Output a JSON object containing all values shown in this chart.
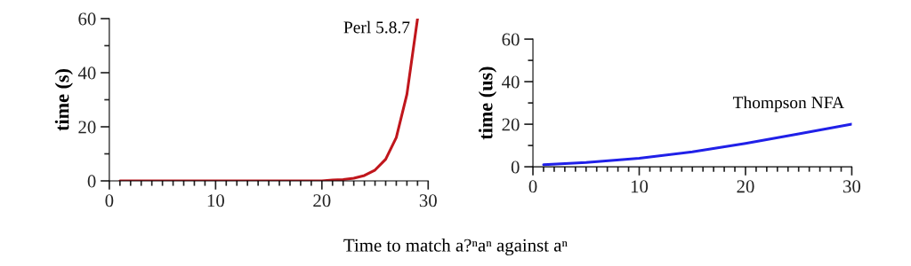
{
  "chart_data": [
    {
      "type": "line",
      "ylabel": "time (s)",
      "xlim": [
        0,
        30
      ],
      "ylim": [
        0,
        60
      ],
      "xticks": [
        0,
        {
          "value": 1,
          "label": null
        },
        {
          "value": 2,
          "label": null
        },
        {
          "value": 3,
          "label": null
        },
        {
          "value": 4,
          "label": null
        },
        {
          "value": 5,
          "label": null
        },
        {
          "value": 6,
          "label": null
        },
        {
          "value": 7,
          "label": null
        },
        {
          "value": 8,
          "label": null
        },
        {
          "value": 9,
          "label": null
        },
        10,
        {
          "value": 11,
          "label": null
        },
        {
          "value": 12,
          "label": null
        },
        {
          "value": 13,
          "label": null
        },
        {
          "value": 14,
          "label": null
        },
        {
          "value": 15,
          "label": null
        },
        {
          "value": 16,
          "label": null
        },
        {
          "value": 17,
          "label": null
        },
        {
          "value": 18,
          "label": null
        },
        {
          "value": 19,
          "label": null
        },
        20,
        {
          "value": 21,
          "label": null
        },
        {
          "value": 22,
          "label": null
        },
        {
          "value": 23,
          "label": null
        },
        {
          "value": 24,
          "label": null
        },
        {
          "value": 25,
          "label": null
        },
        {
          "value": 26,
          "label": null
        },
        {
          "value": 27,
          "label": null
        },
        {
          "value": 28,
          "label": null
        },
        {
          "value": 29,
          "label": null
        },
        30
      ],
      "yticks": [
        0,
        {
          "value": 10,
          "label": null
        },
        20,
        {
          "value": 30,
          "label": null
        },
        40,
        {
          "value": 50,
          "label": null
        },
        60
      ],
      "grid": false,
      "marker": "none",
      "line_style": "solid",
      "series": [
        {
          "name": "Perl 5.8.7",
          "color": "#c0161c",
          "x": [
            1,
            5,
            10,
            15,
            20,
            21,
            22,
            23,
            24,
            25,
            26,
            27,
            28,
            29
          ],
          "values": [
            0,
            0,
            0,
            0,
            0,
            0.3,
            0.5,
            1,
            2,
            4,
            8,
            16,
            32,
            60
          ]
        }
      ],
      "annotations": [
        "Time to match a?ⁿaⁿ against aⁿ"
      ]
    },
    {
      "type": "line",
      "ylabel": "time (us)",
      "xlim": [
        0,
        30
      ],
      "ylim": [
        0,
        60
      ],
      "xticks": [
        0,
        {
          "value": 1,
          "label": null
        },
        {
          "value": 2,
          "label": null
        },
        {
          "value": 3,
          "label": null
        },
        {
          "value": 4,
          "label": null
        },
        {
          "value": 5,
          "label": null
        },
        {
          "value": 6,
          "label": null
        },
        {
          "value": 7,
          "label": null
        },
        {
          "value": 8,
          "label": null
        },
        {
          "value": 9,
          "label": null
        },
        10,
        {
          "value": 11,
          "label": null
        },
        {
          "value": 12,
          "label": null
        },
        {
          "value": 13,
          "label": null
        },
        {
          "value": 14,
          "label": null
        },
        {
          "value": 15,
          "label": null
        },
        {
          "value": 16,
          "label": null
        },
        {
          "value": 17,
          "label": null
        },
        {
          "value": 18,
          "label": null
        },
        {
          "value": 19,
          "label": null
        },
        20,
        {
          "value": 21,
          "label": null
        },
        {
          "value": 22,
          "label": null
        },
        {
          "value": 23,
          "label": null
        },
        {
          "value": 24,
          "label": null
        },
        {
          "value": 25,
          "label": null
        },
        {
          "value": 26,
          "label": null
        },
        {
          "value": 27,
          "label": null
        },
        {
          "value": 28,
          "label": null
        },
        {
          "value": 29,
          "label": null
        },
        30
      ],
      "yticks": [
        0,
        {
          "value": 10,
          "label": null
        },
        20,
        {
          "value": 30,
          "label": null
        },
        40,
        {
          "value": 50,
          "label": null
        },
        60
      ],
      "grid": false,
      "marker": "none",
      "line_style": "solid",
      "series": [
        {
          "name": "Thompson NFA",
          "color": "#2020e8",
          "x": [
            1,
            5,
            10,
            15,
            20,
            25,
            30
          ],
          "values": [
            1,
            2,
            4,
            7,
            11,
            15.5,
            20
          ]
        }
      ]
    }
  ]
}
